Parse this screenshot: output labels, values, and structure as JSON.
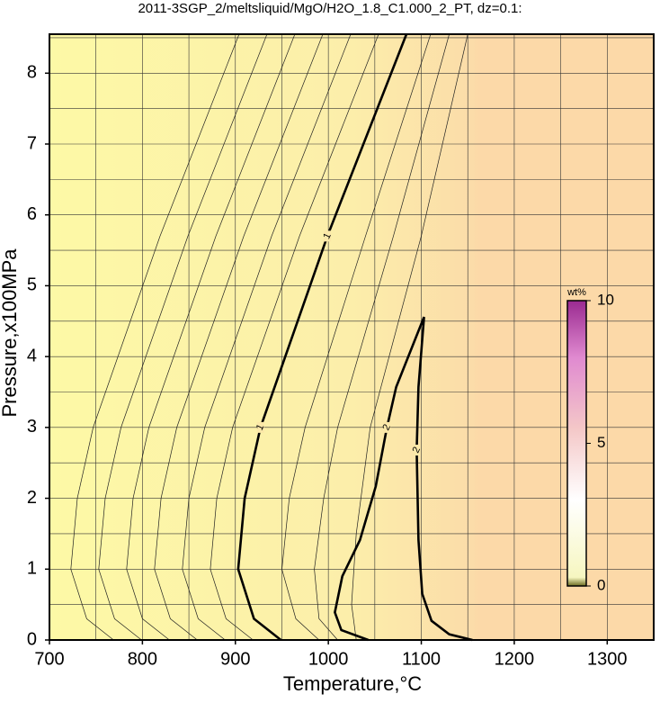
{
  "chart_data": {
    "type": "contour",
    "title": "2011-3SGP_2/meltsliquid/MgO/H2O_1.8_C1.000_2_PT, dz=0.1:",
    "x_label": "Temperature,°C",
    "y_label": "Pressure,x100MPa",
    "xlim": [
      700,
      1350
    ],
    "ylim": [
      0,
      8.55
    ],
    "xticks": [
      700,
      800,
      900,
      1000,
      1100,
      1200,
      1300
    ],
    "yticks": [
      0,
      1,
      2,
      3,
      4,
      5,
      6,
      7,
      8
    ],
    "xgrid": [
      750,
      800,
      850,
      900,
      950,
      1000,
      1050,
      1100,
      1150,
      1200,
      1250,
      1300
    ],
    "ygrid": [
      0.5,
      1,
      1.5,
      2,
      2.5,
      3,
      3.5,
      4,
      4.5,
      5,
      5.5,
      6,
      6.5,
      7,
      7.5,
      8,
      8.5
    ],
    "grid": true,
    "contours": [
      {
        "level": 1,
        "color": "#000000",
        "x": [
          949,
          920,
          903,
          910,
          927,
          999,
          1084
        ],
        "y": [
          0,
          0.3,
          1,
          2,
          3,
          5.7,
          8.55
        ]
      },
      {
        "level": 2,
        "color": "#000000",
        "x": [
          1043,
          1014,
          1007,
          1015,
          1034,
          1051,
          1063,
          1073,
          1103,
          1097,
          1095,
          1097,
          1101,
          1111,
          1130,
          1155
        ],
        "y": [
          0,
          0.14,
          0.39,
          0.9,
          1.41,
          2.17,
          3.0,
          3.57,
          4.56,
          3.57,
          2.68,
          1.41,
          0.65,
          0.27,
          0.08,
          0
        ]
      }
    ],
    "lines": [
      {
        "x": [
          919,
          890,
          873,
          880,
          897,
          969,
          1054
        ],
        "y": [
          0,
          0.3,
          1,
          2,
          3,
          5.7,
          8.55
        ]
      },
      {
        "x": [
          889,
          860,
          843,
          850,
          867,
          939,
          1024
        ],
        "y": [
          0,
          0.3,
          1,
          2,
          3,
          5.7,
          8.55
        ]
      },
      {
        "x": [
          859,
          830,
          813,
          820,
          837,
          909,
          994
        ],
        "y": [
          0,
          0.3,
          1,
          2,
          3,
          5.7,
          8.55
        ]
      },
      {
        "x": [
          829,
          800,
          783,
          790,
          807,
          879,
          964
        ],
        "y": [
          0,
          0.3,
          1,
          2,
          3,
          5.7,
          8.55
        ]
      },
      {
        "x": [
          799,
          770,
          753,
          760,
          777,
          849,
          934
        ],
        "y": [
          0,
          0.3,
          1,
          2,
          3,
          5.7,
          8.55
        ]
      },
      {
        "x": [
          769,
          740,
          723,
          730,
          747,
          819,
          904
        ],
        "y": [
          0,
          0.3,
          1,
          2,
          3,
          5.7,
          8.55
        ]
      },
      {
        "x": [
          990,
          965,
          950,
          958,
          975,
          1040,
          1110
        ],
        "y": [
          0,
          0.3,
          1,
          2,
          3,
          5.7,
          8.55
        ]
      },
      {
        "x": [
          1010,
          990,
          985,
          995,
          1010,
          1070,
          1130
        ],
        "y": [
          0,
          0.3,
          1,
          2,
          3,
          5.7,
          8.55
        ]
      },
      {
        "x": [
          1030,
          1025,
          1030,
          1045,
          1100,
          1150
        ],
        "y": [
          0,
          0.5,
          1.5,
          3,
          5.7,
          8.55
        ]
      }
    ],
    "colorbar": {
      "label": "wt%",
      "lim": [
        0,
        10
      ],
      "ticks": [
        0,
        5,
        10
      ]
    }
  }
}
